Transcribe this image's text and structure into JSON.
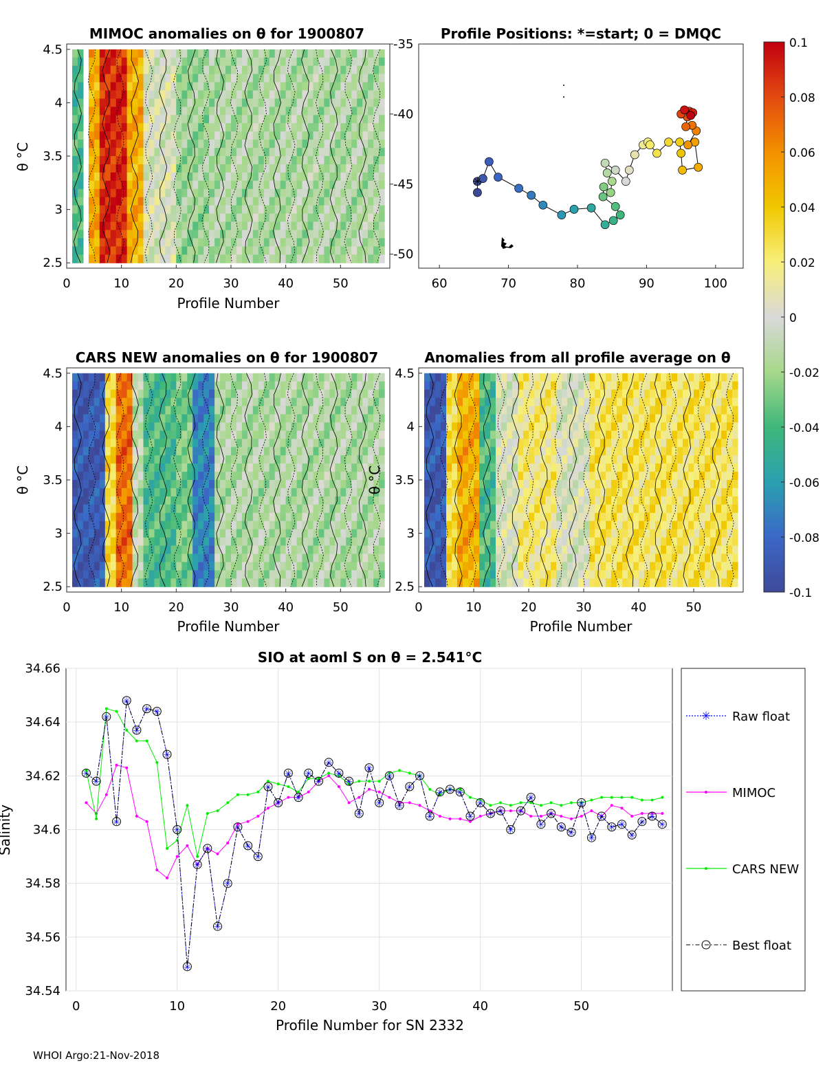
{
  "footer": "WHOI Argo:21-Nov-2018",
  "colorbar": {
    "ticks": [
      "0.1",
      "0.08",
      "0.06",
      "0.04",
      "0.02",
      "0",
      "-0.02",
      "-0.04",
      "-0.06",
      "-0.08",
      "-0.1"
    ],
    "range": [
      -0.1,
      0.1
    ]
  },
  "chart_data": [
    {
      "id": "mimoc",
      "type": "heatmap",
      "title": "MIMOC anomalies on θ  for 1900807",
      "xlabel": "Profile Number",
      "ylabel": "θ °C",
      "xticks": [
        "0",
        "10",
        "20",
        "30",
        "40",
        "50"
      ],
      "yticks": [
        "4.5",
        "4",
        "3.5",
        "3",
        "2.5"
      ],
      "xlim": [
        0,
        59
      ],
      "ylim": [
        2.45,
        4.55
      ],
      "data_extent": {
        "x": [
          1,
          58
        ],
        "y_top": 4.5,
        "y_bottom": 2.5
      },
      "anomaly_bands": [
        {
          "x_from": 1,
          "x_to": 3,
          "value": -0.04
        },
        {
          "x_from": 4,
          "x_to": 6,
          "value": 0.05
        },
        {
          "x_from": 6,
          "x_to": 11,
          "value": 0.09
        },
        {
          "x_from": 11,
          "x_to": 14,
          "value": 0.05
        },
        {
          "x_from": 14,
          "x_to": 20,
          "value": 0.0
        },
        {
          "x_from": 20,
          "x_to": 26,
          "value": -0.02
        },
        {
          "x_from": 26,
          "x_to": 58,
          "value": -0.015
        }
      ]
    },
    {
      "id": "positions",
      "type": "scatter",
      "title": "Profile Positions: *=start; 0 = DMQC",
      "xticks": [
        "60",
        "70",
        "80",
        "90",
        "100"
      ],
      "yticks": [
        "-35",
        "-40",
        "-45",
        "-50"
      ],
      "xlim": [
        57,
        104
      ],
      "ylim": [
        -51,
        -35
      ],
      "points": [
        [
          65.5,
          -45.6
        ],
        [
          65.5,
          -44.8
        ],
        [
          66.3,
          -44.6
        ],
        [
          67.2,
          -43.4
        ],
        [
          68.5,
          -44.5
        ],
        [
          71.5,
          -45.3
        ],
        [
          73.3,
          -45.8
        ],
        [
          75.0,
          -46.5
        ],
        [
          77.7,
          -47.2
        ],
        [
          79.5,
          -46.8
        ],
        [
          82.0,
          -46.7
        ],
        [
          84.0,
          -47.9
        ],
        [
          85.2,
          -47.6
        ],
        [
          86.2,
          -47.2
        ],
        [
          85.5,
          -46.6
        ],
        [
          83.7,
          -45.9
        ],
        [
          83.8,
          -45.2
        ],
        [
          84.8,
          -45.6
        ],
        [
          85.0,
          -44.8
        ],
        [
          84.3,
          -44.2
        ],
        [
          84.0,
          -43.5
        ],
        [
          85.5,
          -44.0
        ],
        [
          87.0,
          -44.8
        ],
        [
          87.5,
          -44.0
        ],
        [
          88.3,
          -42.9
        ],
        [
          89.5,
          -42.2
        ],
        [
          90.2,
          -42.0
        ],
        [
          90.5,
          -42.2
        ],
        [
          91.5,
          -42.8
        ],
        [
          93.2,
          -42.0
        ],
        [
          94.8,
          -42.0
        ],
        [
          95.0,
          -42.8
        ],
        [
          95.2,
          -44.0
        ],
        [
          97.5,
          -43.8
        ],
        [
          97.0,
          -42.0
        ],
        [
          96.0,
          -42.2
        ],
        [
          97.2,
          -41.2
        ],
        [
          96.6,
          -40.8
        ],
        [
          95.7,
          -40.9
        ],
        [
          95.9,
          -40.2
        ],
        [
          95.0,
          -40.0
        ],
        [
          96.2,
          -39.8
        ],
        [
          96.7,
          -39.9
        ],
        [
          95.5,
          -39.7
        ],
        [
          96.4,
          -40.1
        ]
      ],
      "color_range": [
        -0.1,
        0.1
      ]
    },
    {
      "id": "cars",
      "type": "heatmap",
      "title": "CARS NEW anomalies on θ for 1900807",
      "xlabel": "Profile Number",
      "ylabel": "θ °C",
      "xticks": [
        "0",
        "10",
        "20",
        "30",
        "40",
        "50"
      ],
      "yticks": [
        "4.5",
        "4",
        "3.5",
        "3",
        "2.5"
      ],
      "xlim": [
        0,
        59
      ],
      "ylim": [
        2.45,
        4.55
      ],
      "data_extent": {
        "x": [
          1,
          58
        ],
        "y_top": 4.5,
        "y_bottom": 2.5
      },
      "anomaly_bands": [
        {
          "x_from": 1,
          "x_to": 7,
          "value": -0.09
        },
        {
          "x_from": 7,
          "x_to": 9,
          "value": 0.03
        },
        {
          "x_from": 9,
          "x_to": 12,
          "value": 0.07
        },
        {
          "x_from": 12,
          "x_to": 14,
          "value": -0.01
        },
        {
          "x_from": 14,
          "x_to": 20,
          "value": -0.04
        },
        {
          "x_from": 20,
          "x_to": 23,
          "value": -0.03
        },
        {
          "x_from": 23,
          "x_to": 27,
          "value": -0.07
        },
        {
          "x_from": 27,
          "x_to": 58,
          "value": -0.015
        }
      ]
    },
    {
      "id": "allavg",
      "type": "heatmap",
      "title": "Anomalies from all profile average on θ",
      "xlabel": "Profile Number",
      "ylabel": "θ °C",
      "xticks": [
        "0",
        "10",
        "20",
        "30",
        "40",
        "50"
      ],
      "yticks": [
        "4.5",
        "4",
        "3.5",
        "3",
        "2.5"
      ],
      "xlim": [
        0,
        59
      ],
      "ylim": [
        2.45,
        4.55
      ],
      "data_extent": {
        "x": [
          1,
          58
        ],
        "y_top": 4.5,
        "y_bottom": 2.5
      },
      "anomaly_bands": [
        {
          "x_from": 1,
          "x_to": 5,
          "value": -0.09
        },
        {
          "x_from": 5,
          "x_to": 7,
          "value": 0.03
        },
        {
          "x_from": 7,
          "x_to": 11,
          "value": 0.05
        },
        {
          "x_from": 11,
          "x_to": 14,
          "value": -0.04
        },
        {
          "x_from": 14,
          "x_to": 18,
          "value": 0.0
        },
        {
          "x_from": 18,
          "x_to": 25,
          "value": 0.02
        },
        {
          "x_from": 25,
          "x_to": 31,
          "value": 0.0
        },
        {
          "x_from": 31,
          "x_to": 58,
          "value": 0.025
        }
      ]
    },
    {
      "id": "salinity",
      "type": "line",
      "title": "SIO at aoml S on θ = 2.541°C",
      "xlabel": "Profile Number for SN 2332",
      "ylabel": "Salinity",
      "xticks": [
        "0",
        "10",
        "20",
        "30",
        "40",
        "50"
      ],
      "yticks": [
        "34.66",
        "34.64",
        "34.62",
        "34.6",
        "34.58",
        "34.56",
        "34.54"
      ],
      "xlim": [
        -1,
        59
      ],
      "ylim": [
        34.54,
        34.66
      ],
      "x": [
        1,
        2,
        3,
        4,
        5,
        6,
        7,
        8,
        9,
        10,
        11,
        12,
        13,
        14,
        15,
        16,
        17,
        18,
        19,
        20,
        21,
        22,
        23,
        24,
        25,
        26,
        27,
        28,
        29,
        30,
        31,
        32,
        33,
        34,
        35,
        36,
        37,
        38,
        39,
        40,
        41,
        42,
        43,
        44,
        45,
        46,
        47,
        48,
        49,
        50,
        51,
        52,
        53,
        54,
        55,
        56,
        57,
        58
      ],
      "series": [
        {
          "name": "Raw float",
          "color": "#0000ff",
          "values": [
            34.621,
            34.618,
            34.642,
            34.603,
            34.648,
            34.637,
            34.645,
            34.644,
            34.628,
            34.6,
            34.549,
            34.587,
            34.593,
            34.564,
            34.58,
            34.601,
            34.594,
            34.59,
            34.616,
            34.61,
            34.621,
            34.612,
            34.621,
            34.618,
            34.625,
            34.621,
            34.618,
            34.606,
            34.623,
            34.61,
            34.62,
            34.609,
            34.616,
            34.62,
            34.605,
            34.614,
            34.615,
            34.614,
            34.605,
            34.61,
            34.606,
            34.607,
            34.6,
            34.607,
            34.612,
            34.602,
            34.606,
            34.601,
            34.599,
            34.61,
            34.597,
            34.605,
            34.601,
            34.602,
            34.598,
            34.603,
            34.605,
            34.602
          ]
        },
        {
          "name": "MIMOC",
          "color": "#ff00ff",
          "values": [
            34.61,
            34.606,
            34.613,
            34.624,
            34.623,
            34.605,
            34.603,
            34.585,
            34.582,
            34.59,
            34.594,
            34.587,
            34.593,
            34.591,
            34.595,
            34.602,
            34.603,
            34.605,
            34.608,
            34.61,
            34.612,
            34.612,
            34.614,
            34.618,
            34.62,
            34.616,
            34.61,
            34.612,
            34.615,
            34.614,
            34.612,
            34.61,
            34.61,
            34.609,
            34.607,
            34.605,
            34.604,
            34.604,
            34.603,
            34.605,
            34.606,
            34.607,
            34.607,
            34.607,
            34.605,
            34.605,
            34.606,
            34.605,
            34.604,
            34.605,
            34.607,
            34.605,
            34.609,
            34.608,
            34.605,
            34.606,
            34.606,
            34.606
          ]
        },
        {
          "name": "CARS NEW",
          "color": "#00ee00",
          "values": [
            34.622,
            34.604,
            34.645,
            34.644,
            34.637,
            34.633,
            34.633,
            34.625,
            34.593,
            34.596,
            34.609,
            34.59,
            34.606,
            34.607,
            34.61,
            34.613,
            34.613,
            34.614,
            34.618,
            34.617,
            34.616,
            34.614,
            34.619,
            34.619,
            34.621,
            34.62,
            34.617,
            34.618,
            34.618,
            34.618,
            34.621,
            34.622,
            34.621,
            34.62,
            34.615,
            34.613,
            34.615,
            34.615,
            34.612,
            34.611,
            34.609,
            34.61,
            34.609,
            34.61,
            34.61,
            34.609,
            34.61,
            34.609,
            34.61,
            34.61,
            34.611,
            34.612,
            34.612,
            34.612,
            34.612,
            34.611,
            34.611,
            34.612
          ]
        },
        {
          "name": "Best float",
          "color": "#000000",
          "values": [
            34.621,
            34.618,
            34.642,
            34.603,
            34.648,
            34.637,
            34.645,
            34.644,
            34.628,
            34.6,
            34.549,
            34.587,
            34.593,
            34.564,
            34.58,
            34.601,
            34.594,
            34.59,
            34.616,
            34.61,
            34.621,
            34.612,
            34.621,
            34.618,
            34.625,
            34.621,
            34.618,
            34.606,
            34.623,
            34.61,
            34.62,
            34.609,
            34.616,
            34.62,
            34.605,
            34.614,
            34.615,
            34.614,
            34.605,
            34.61,
            34.606,
            34.607,
            34.6,
            34.607,
            34.612,
            34.602,
            34.606,
            34.601,
            34.599,
            34.61,
            34.597,
            34.605,
            34.601,
            34.602,
            34.598,
            34.603,
            34.605,
            34.602
          ]
        }
      ],
      "legend": [
        "Raw float",
        "MIMOC",
        "CARS NEW",
        "Best float"
      ]
    }
  ]
}
